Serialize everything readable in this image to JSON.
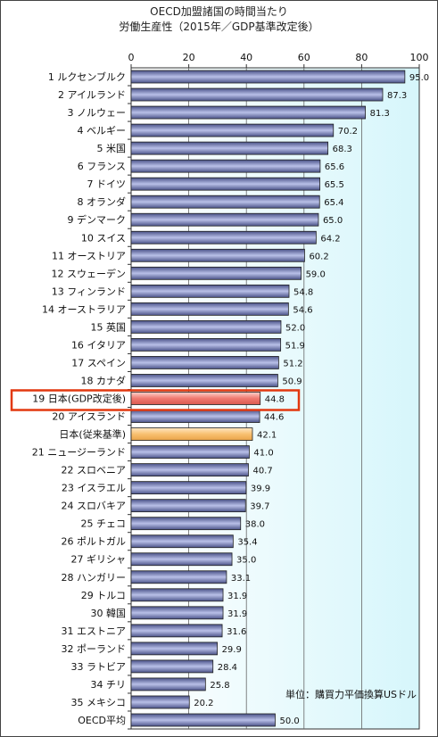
{
  "chart_data": {
    "type": "bar",
    "orientation": "horizontal",
    "title": "OECD加盟諸国の時間当たり",
    "subtitle": "労働生産性（2015年／GDP基準改定後）",
    "unit_note": "単位：購買力平価換算USドル",
    "xlim": [
      0,
      100
    ],
    "x_ticks": [
      "0",
      "20",
      "40",
      "60",
      "80",
      "100"
    ],
    "grid": true,
    "categories": [
      "1 ルクセンブルク",
      "2 アイルランド",
      "3 ノルウェー",
      "4 ベルギー",
      "5 米国",
      "6 フランス",
      "7 ドイツ",
      "8 オランダ",
      "9 デンマーク",
      "10 スイス",
      "11 オーストリア",
      "12 スウェーデン",
      "13 フィンランド",
      "14 オーストラリア",
      "15 英国",
      "16 イタリア",
      "17 スペイン",
      "18 カナダ",
      "19 日本(GDP改定後)",
      "20 アイスランド",
      "日本(従来基準)",
      "21 ニュージーランド",
      "22 スロベニア",
      "23 イスラエル",
      "24 スロバキア",
      "25 チェコ",
      "26 ポルトガル",
      "27 ギリシャ",
      "28 ハンガリー",
      "29 トルコ",
      "30 韓国",
      "31 エストニア",
      "32 ポーランド",
      "33 ラトビア",
      "34 チリ",
      "35 メキシコ",
      "OECD平均"
    ],
    "values": [
      95.0,
      87.3,
      81.3,
      70.2,
      68.3,
      65.6,
      65.5,
      65.4,
      65.0,
      64.2,
      60.2,
      59.0,
      54.8,
      54.6,
      52.0,
      51.9,
      51.2,
      50.9,
      44.8,
      44.6,
      42.1,
      41.0,
      40.7,
      39.9,
      39.7,
      38.0,
      35.4,
      35.0,
      33.1,
      31.9,
      31.9,
      31.6,
      29.9,
      28.4,
      25.8,
      20.2,
      50.0
    ],
    "value_labels": [
      "95.0",
      "87.3",
      "81.3",
      "70.2",
      "68.3",
      "65.6",
      "65.5",
      "65.4",
      "65.0",
      "64.2",
      "60.2",
      "59.0",
      "54.8",
      "54.6",
      "52.0",
      "51.9",
      "51.2",
      "50.9",
      "44.8",
      "44.6",
      "42.1",
      "41.0",
      "40.7",
      "39.9",
      "39.7",
      "38.0",
      "35.4",
      "35.0",
      "33.1",
      "31.9",
      "31.9",
      "31.6",
      "29.9",
      "28.4",
      "25.8",
      "20.2",
      "50.0"
    ],
    "highlight": {
      "japan_revised_index": 18,
      "japan_revised_color": "#f07a70",
      "japan_revised_box_color": "#e2380f",
      "japan_previous_index": 20,
      "japan_previous_color": "#f8c070"
    },
    "colors": {
      "bar": "#4a5288",
      "bar_highlight_light": "#b9c0e8",
      "plot_bg_gradient_start": "#ffffff",
      "plot_bg_gradient_end": "#d6f6fb",
      "grid": "#666666"
    }
  }
}
